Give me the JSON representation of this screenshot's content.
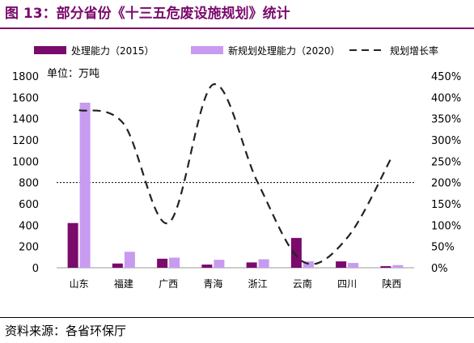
{
  "title": "图 13：部分省份《十三五危废设施规划》统计",
  "source": "资料来源：各省环保厅",
  "chart_data": {
    "type": "bar",
    "categories": [
      "山东",
      "福建",
      "广西",
      "青海",
      "浙江",
      "云南",
      "四川",
      "陕西"
    ],
    "unit_note": "单位：万吨",
    "series": [
      {
        "name": "处理能力（2015）",
        "type": "bar",
        "axis": "left",
        "color": "#7a0a6c",
        "values": [
          420,
          40,
          85,
          30,
          50,
          280,
          60,
          15
        ]
      },
      {
        "name": "新规划处理能力（2020）",
        "type": "bar",
        "axis": "left",
        "color": "#c89bf0",
        "values": [
          1550,
          150,
          95,
          75,
          80,
          60,
          45,
          25
        ]
      },
      {
        "name": "规划增长率",
        "type": "line",
        "axis": "right",
        "color": "#222222",
        "dash": true,
        "values": [
          3.7,
          3.38,
          1.05,
          4.3,
          2.0,
          0.15,
          0.7,
          2.6
        ]
      }
    ],
    "left_axis": {
      "min": 0,
      "max": 1800,
      "ticks": [
        0,
        200,
        400,
        600,
        800,
        1000,
        1200,
        1400,
        1600,
        1800
      ]
    },
    "right_axis": {
      "min": 0,
      "max": 4.5,
      "ticks": [
        0,
        0.5,
        1,
        1.5,
        2,
        2.5,
        3,
        3.5,
        4,
        4.5
      ],
      "tick_labels": [
        "0%",
        "50%",
        "100%",
        "150%",
        "200%",
        "250%",
        "300%",
        "350%",
        "400%",
        "450%"
      ]
    },
    "reference_line": {
      "axis": "left",
      "value": 800,
      "style": "dotted"
    },
    "legend": "top"
  }
}
